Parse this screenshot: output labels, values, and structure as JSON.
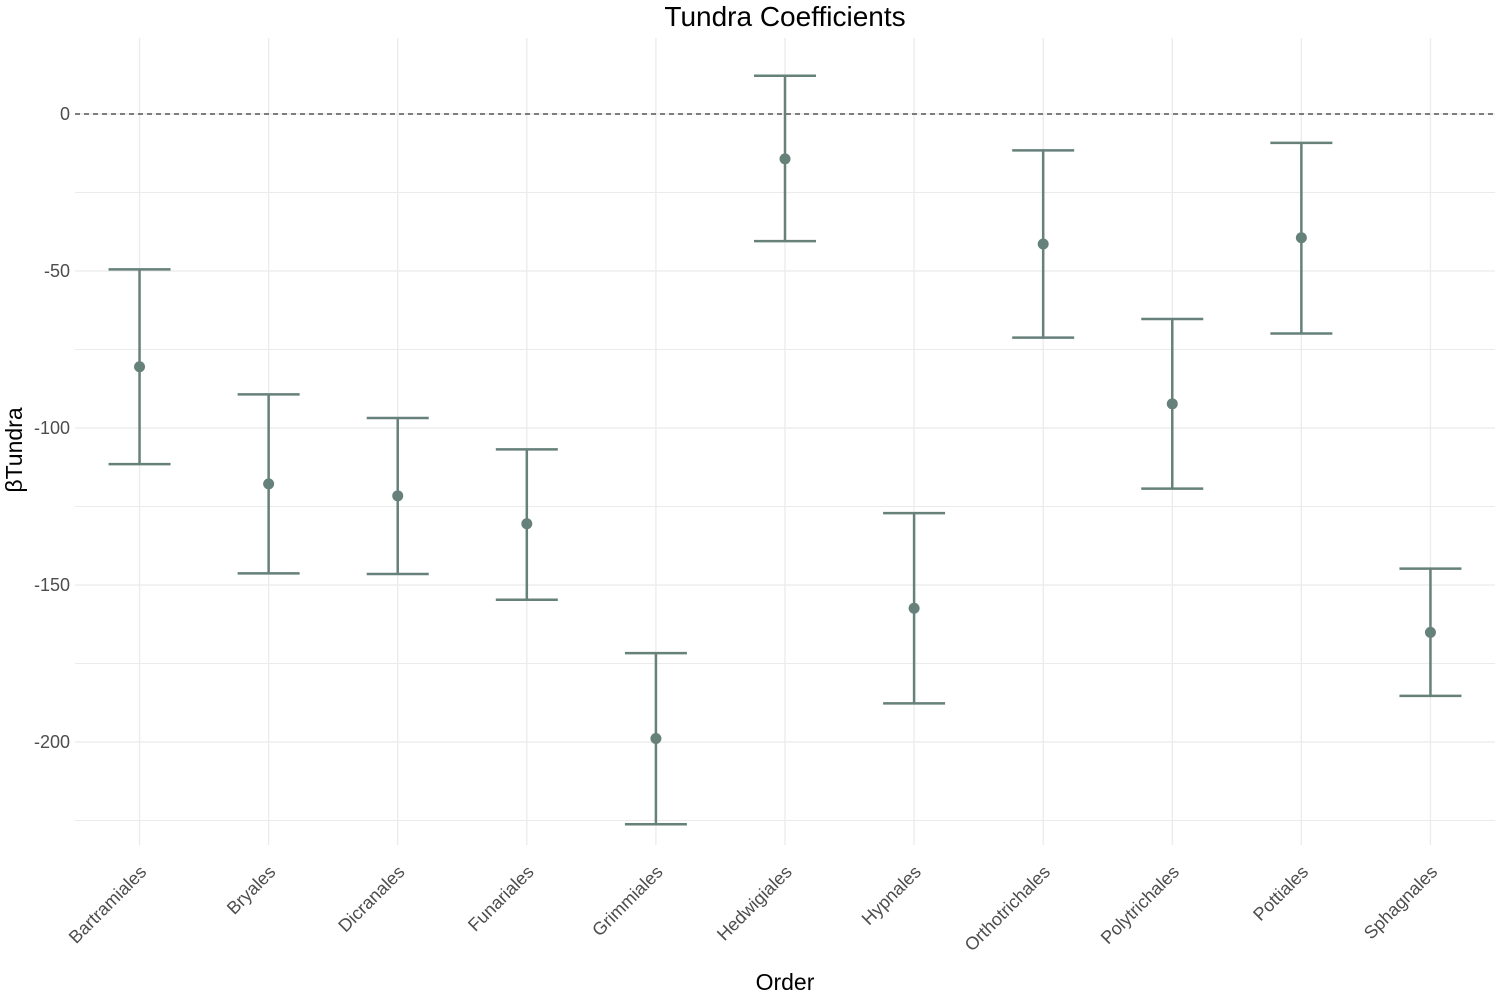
{
  "chart_data": {
    "type": "errorbar",
    "title": "Tundra Coefficients",
    "xlabel": "Order",
    "ylabel": "βTundra",
    "categories": [
      "Bartramiales",
      "Bryales",
      "Dicranales",
      "Funariales",
      "Grimmiales",
      "Hedwigiales",
      "Hypnales",
      "Orthotrichales",
      "Polytrichales",
      "Pottiales",
      "Sphagnales"
    ],
    "series": [
      {
        "estimate": [
          -80.5,
          -117.8,
          -121.6,
          -130.5,
          -198.9,
          -14.3,
          -157.4,
          -41.4,
          -92.3,
          -39.4,
          -165.1
        ],
        "lower": [
          -111.5,
          -146.3,
          -146.5,
          -154.7,
          -226.2,
          -40.5,
          -187.7,
          -71.2,
          -119.3,
          -69.9,
          -185.3
        ],
        "upper": [
          -49.5,
          -89.3,
          -96.8,
          -106.8,
          -171.7,
          12.2,
          -127.1,
          -11.6,
          -65.3,
          -9.2,
          -144.8
        ]
      }
    ],
    "ylim": [
      -233,
      24
    ],
    "yticks": [
      0,
      -50,
      -100,
      -150,
      -200
    ],
    "ytick_labels": [
      "0",
      "-50",
      "-100",
      "-150",
      "-200"
    ],
    "reference_line": 0,
    "grid": true,
    "colors": {
      "series": "#66807a",
      "grid": "#ebebeb",
      "reference_line": "#555555"
    }
  }
}
